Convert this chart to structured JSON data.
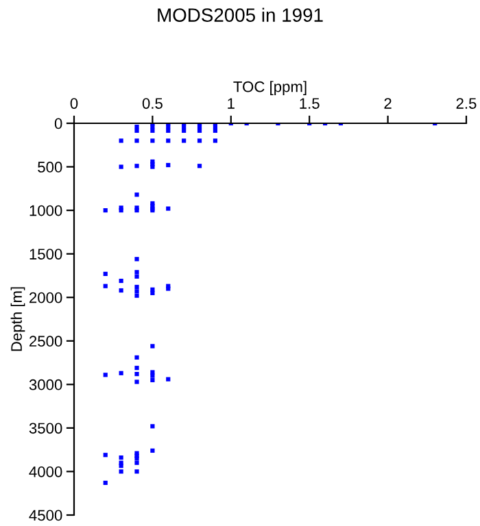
{
  "chart_data": {
    "type": "scatter",
    "title": "MODS2005 in 1991",
    "xlabel": "TOC [ppm]",
    "ylabel": "Depth [m]",
    "xlim": [
      0,
      2.5
    ],
    "xticks": [
      0,
      0.5,
      1,
      1.5,
      2,
      2.5
    ],
    "ylim": [
      4500,
      0
    ],
    "yticks": [
      0,
      500,
      1000,
      1500,
      2000,
      2500,
      3000,
      3500,
      4000,
      4500
    ],
    "marker": "square",
    "grid": false,
    "legend": false,
    "series": [
      {
        "color": "#0000ff",
        "x": [
          0.5,
          0.6,
          0.7,
          0.8,
          0.9,
          1.0,
          1.1,
          1.3,
          1.5,
          1.6,
          1.7,
          2.3,
          0.4,
          0.5,
          0.6,
          0.7,
          0.8,
          0.9,
          0.4,
          0.5,
          0.6,
          0.7,
          0.8,
          0.9,
          0.3,
          0.4,
          0.5,
          0.6,
          0.7,
          0.8,
          0.9,
          0.3,
          0.4,
          0.5,
          0.5,
          0.5,
          0.6,
          0.8,
          0.2,
          0.3,
          0.3,
          0.4,
          0.4,
          0.4,
          0.5,
          0.5,
          0.5,
          0.5,
          0.6,
          0.4,
          0.2,
          0.2,
          0.3,
          0.3,
          0.4,
          0.4,
          0.4,
          0.4,
          0.4,
          0.5,
          0.5,
          0.6,
          0.6,
          0.5,
          0.4,
          0.4,
          0.4,
          0.4,
          0.2,
          0.3,
          0.5,
          0.5,
          0.5,
          0.6,
          0.5,
          0.5,
          0.2,
          0.2,
          0.3,
          0.3,
          0.3,
          0.3,
          0.4,
          0.4,
          0.4,
          0.4,
          0.4
        ],
        "values": [
          0,
          0,
          0,
          0,
          0,
          0,
          0,
          0,
          0,
          0,
          0,
          0,
          40,
          40,
          40,
          40,
          40,
          40,
          85,
          85,
          85,
          85,
          85,
          85,
          200,
          200,
          200,
          200,
          200,
          200,
          200,
          500,
          490,
          440,
          470,
          500,
          480,
          490,
          1000,
          970,
          1000,
          820,
          970,
          1000,
          920,
          950,
          980,
          1000,
          980,
          1560,
          1730,
          1870,
          1810,
          1920,
          1710,
          1760,
          1880,
          1930,
          1980,
          1910,
          1950,
          1870,
          1900,
          2560,
          2690,
          2810,
          2880,
          2970,
          2890,
          2870,
          2860,
          2900,
          2950,
          2940,
          3480,
          3760,
          3810,
          4130,
          3840,
          3900,
          3935,
          4000,
          3790,
          3820,
          3850,
          3900,
          4000
        ]
      }
    ]
  }
}
